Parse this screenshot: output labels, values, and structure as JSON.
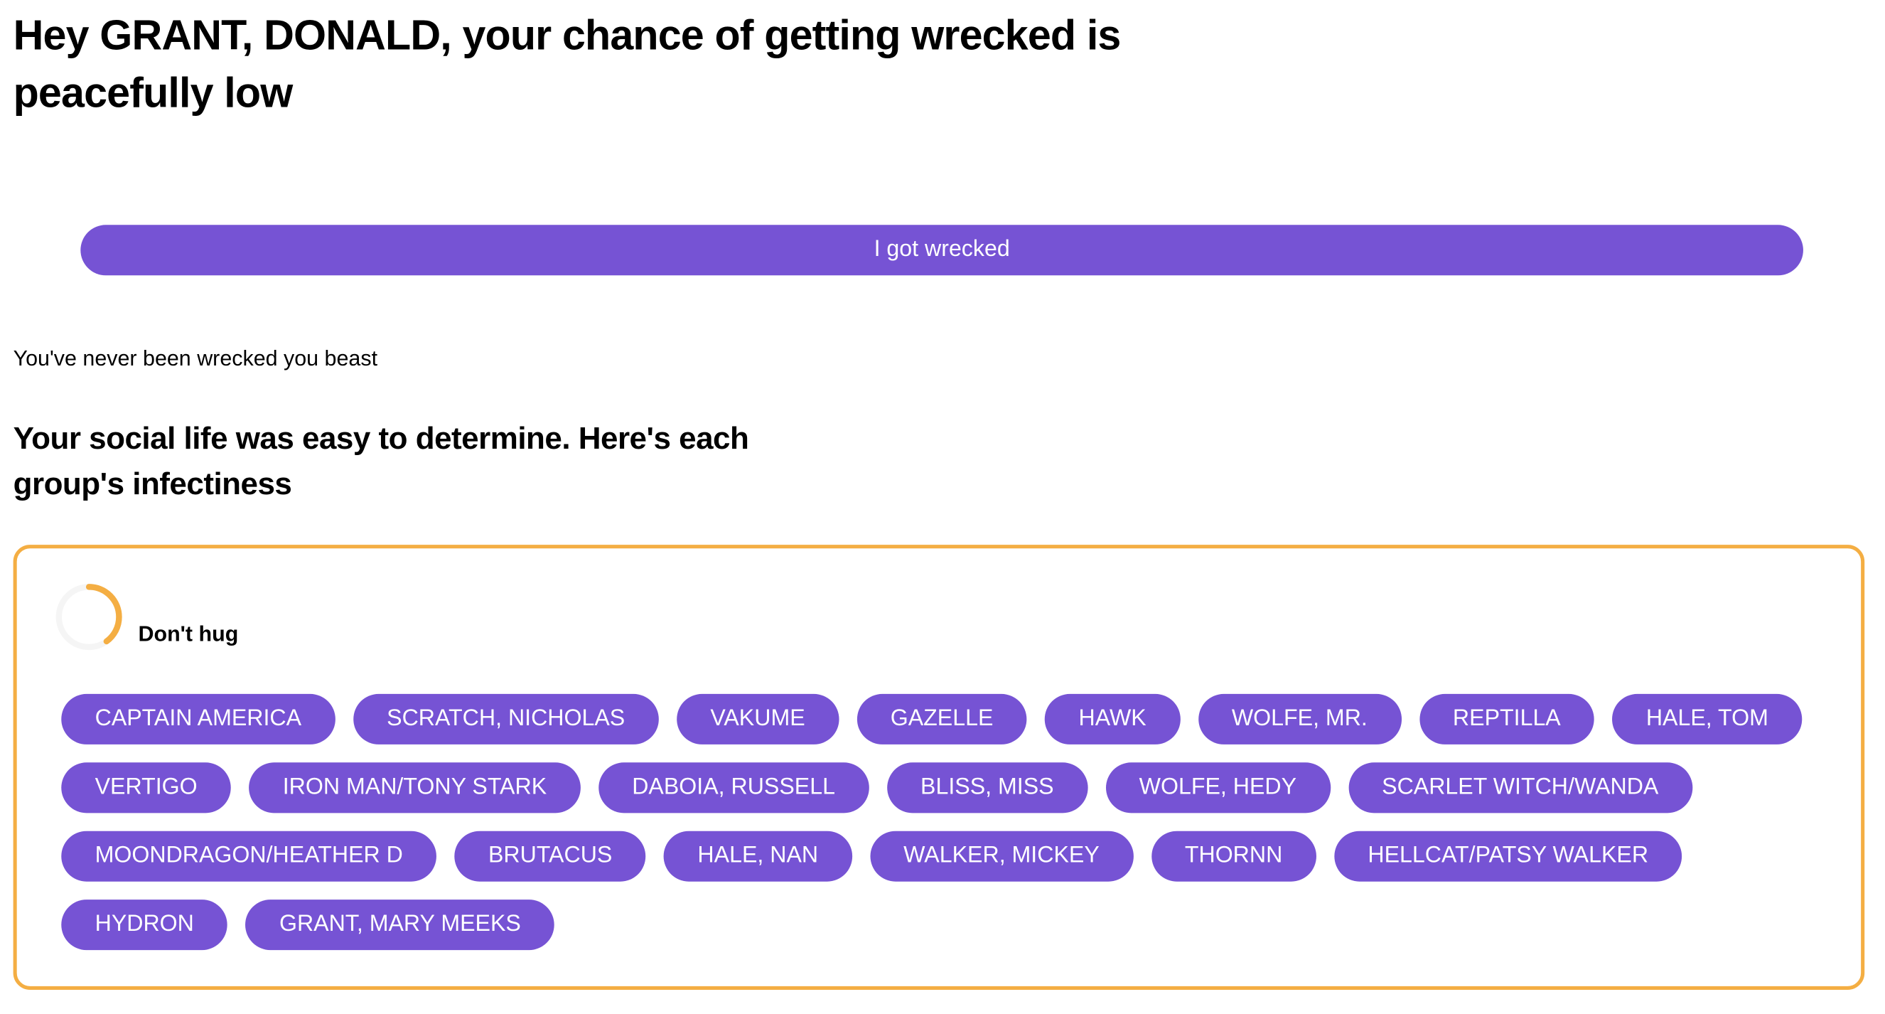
{
  "header": {
    "title": "Hey GRANT, DONALD, your chance of getting wrecked is peacefully low"
  },
  "wreck_button": {
    "label": "I got wrecked"
  },
  "status_text": "You've never been wrecked you beast",
  "social": {
    "heading": "Your social life was easy to determine. Here's each group's infectiness"
  },
  "group": {
    "title": "Don't hug",
    "infectiness_fraction": 0.4,
    "members": [
      "CAPTAIN AMERICA",
      "SCRATCH, NICHOLAS",
      "VAKUME",
      "GAZELLE",
      "HAWK",
      "WOLFE, MR.",
      "REPTILLA",
      "HALE, TOM",
      "VERTIGO",
      "IRON MAN/TONY STARK",
      "DABOIA, RUSSELL",
      "BLISS, MISS",
      "WOLFE, HEDY",
      "SCARLET WITCH/WANDA",
      "MOONDRAGON/HEATHER D",
      "BRUTACUS",
      "HALE, NAN",
      "WALKER, MICKEY",
      "THORNN",
      "HELLCAT/PATSY WALKER",
      "HYDRON",
      "GRANT, MARY MEEKS"
    ]
  },
  "colors": {
    "accent": "#7653D4",
    "border": "#F4AE43",
    "ring_track": "#F5F5F5"
  }
}
